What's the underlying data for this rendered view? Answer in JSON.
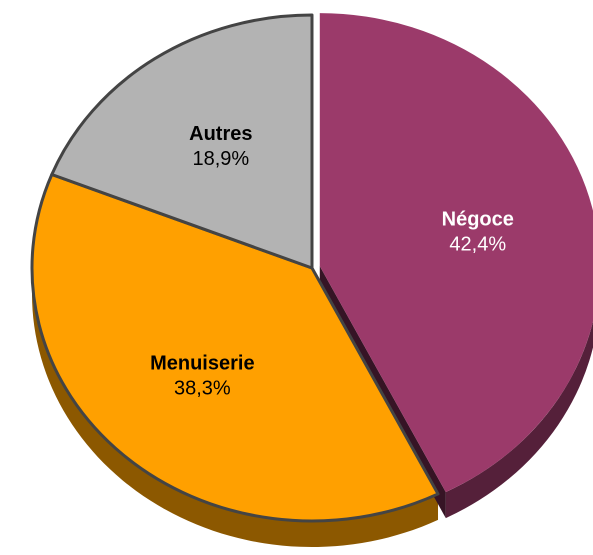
{
  "chart_data": {
    "type": "pie",
    "categories": [
      "Négoce",
      "Menuiserie",
      "Autres"
    ],
    "values": [
      42.4,
      38.3,
      18.9
    ],
    "value_labels": [
      "42,4%",
      "38,3%",
      "18,9%"
    ],
    "colors": [
      "#9b3a6a",
      "#ffa000",
      "#b3b3b3"
    ],
    "label_colors": [
      "#ffffff",
      "#000000",
      "#000000"
    ]
  }
}
